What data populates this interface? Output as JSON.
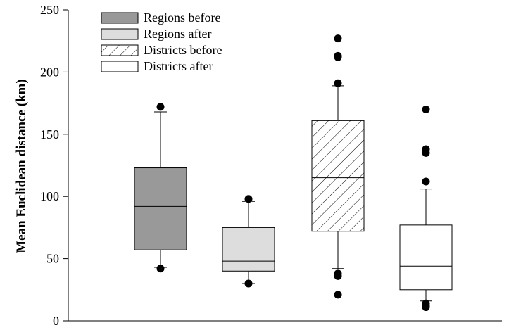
{
  "chart_data": {
    "type": "box",
    "title": "",
    "xlabel": "",
    "ylabel": "Mean Euclidean distance (km)",
    "ylim": [
      0,
      250
    ],
    "yticks": [
      0,
      50,
      100,
      150,
      200,
      250
    ],
    "grid": false,
    "legend_position": "top-left",
    "series": [
      {
        "name": "Regions before",
        "fill": "#999999",
        "pattern": "solid",
        "q1": 57,
        "median": 92,
        "q3": 123,
        "whisker_low": 43,
        "whisker_high": 168,
        "outliers": [
          42,
          172
        ]
      },
      {
        "name": "Regions after",
        "fill": "#dddddd",
        "pattern": "solid",
        "q1": 40,
        "median": 48,
        "q3": 75,
        "whisker_low": 30,
        "whisker_high": 96,
        "outliers": [
          30,
          98
        ]
      },
      {
        "name": "Districts before",
        "fill": "#ffffff",
        "pattern": "diagonal-hatch",
        "q1": 72,
        "median": 115,
        "q3": 161,
        "whisker_low": 42,
        "whisker_high": 189,
        "outliers": [
          21,
          36,
          38,
          191,
          212,
          213,
          227
        ]
      },
      {
        "name": "Districts after",
        "fill": "#ffffff",
        "pattern": "solid",
        "q1": 25,
        "median": 44,
        "q3": 77,
        "whisker_low": 16,
        "whisker_high": 106,
        "outliers": [
          11,
          12,
          14,
          112,
          135,
          138,
          170
        ]
      }
    ]
  }
}
